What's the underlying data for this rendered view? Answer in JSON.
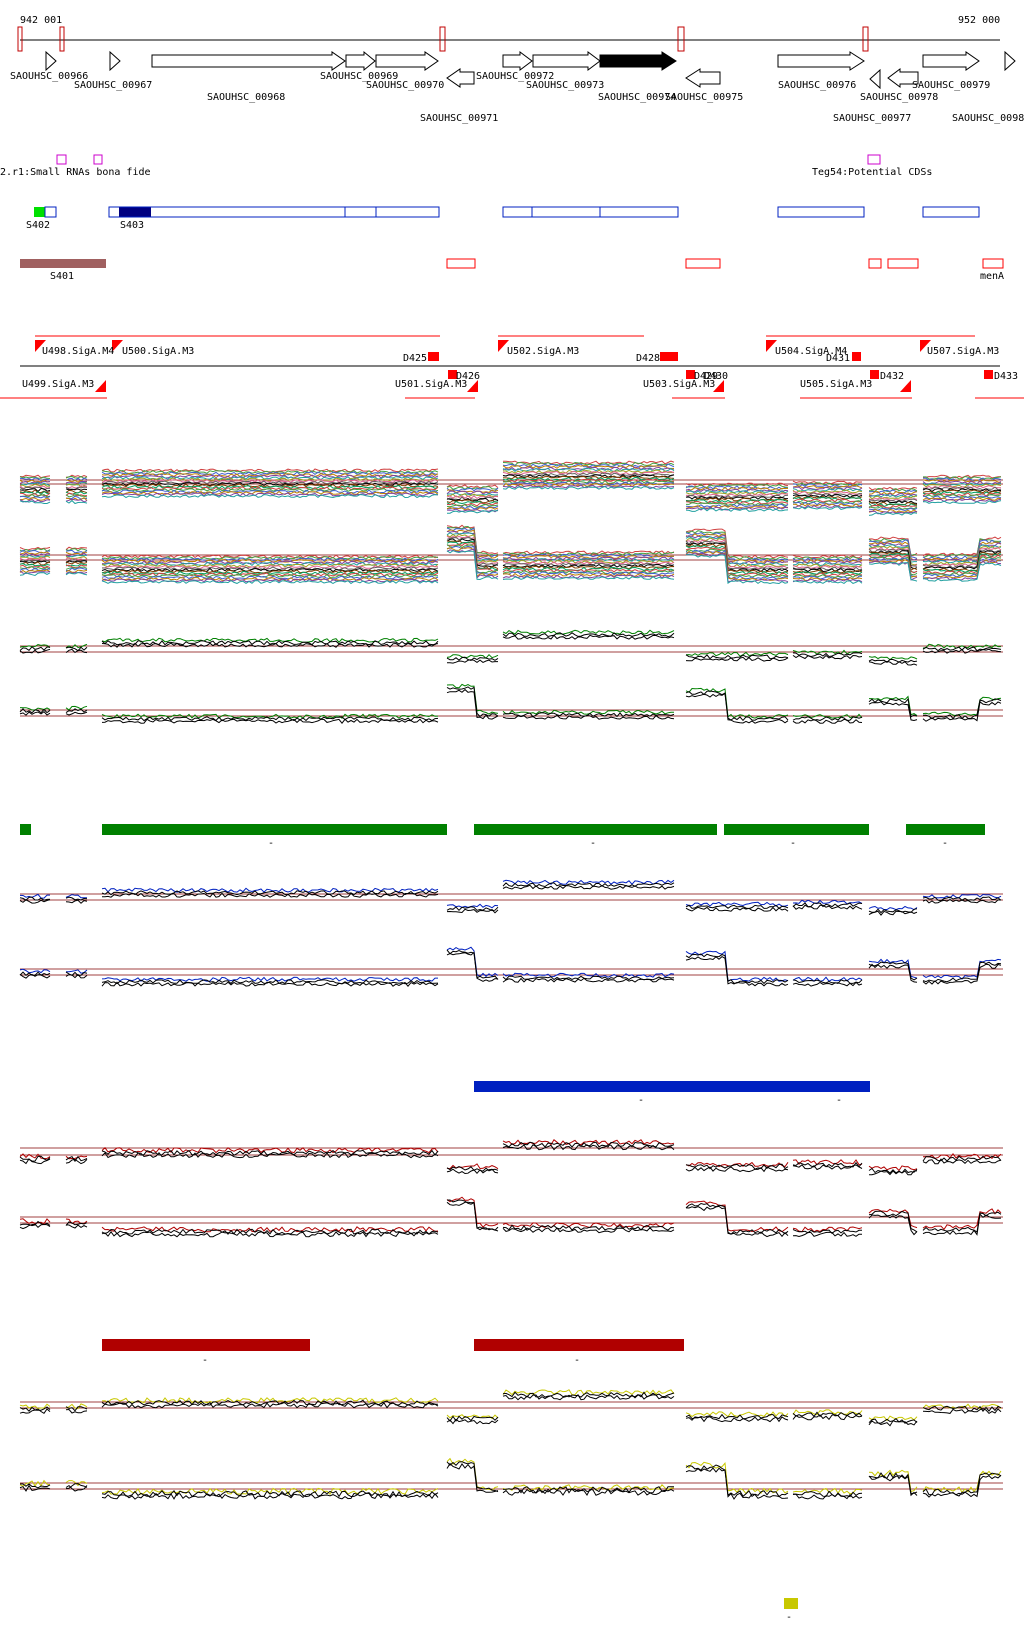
{
  "axis": {
    "start_label": "942 001",
    "end_label": "952 000"
  },
  "genes": [
    {
      "name": "SAOUHSC_00966",
      "strand": "+"
    },
    {
      "name": "SAOUHSC_00967",
      "strand": "+"
    },
    {
      "name": "SAOUHSC_00968",
      "strand": "+"
    },
    {
      "name": "SAOUHSC_00969",
      "strand": "+"
    },
    {
      "name": "SAOUHSC_00970",
      "strand": "+"
    },
    {
      "name": "SAOUHSC_00971",
      "strand": "-"
    },
    {
      "name": "SAOUHSC_00972",
      "strand": "+"
    },
    {
      "name": "SAOUHSC_00973",
      "strand": "+"
    },
    {
      "name": "SAOUHSC_00974",
      "strand": "+",
      "highlighted": true
    },
    {
      "name": "SAOUHSC_00975",
      "strand": "-"
    },
    {
      "name": "SAOUHSC_00976",
      "strand": "+"
    },
    {
      "name": "SAOUHSC_00977",
      "strand": "-"
    },
    {
      "name": "SAOUHSC_00978",
      "strand": "-"
    },
    {
      "name": "SAOUHSC_00979",
      "strand": "+"
    },
    {
      "name": "SAOUHSC_0098",
      "strand": "+"
    }
  ],
  "small_rna_labels": {
    "bona_fide": "2.r1:Small RNAs bona fide",
    "potential": "Teg54:Potential CDSs"
  },
  "segments": {
    "s402": "S402",
    "s403": "S403",
    "s401": "S401",
    "mena": "menA"
  },
  "promoters_up": [
    "U498.SigA.M4",
    "U500.SigA.M3",
    "U502.SigA.M3",
    "U504.SigA.M4",
    "U507.SigA.M3"
  ],
  "promoters_down": [
    "U499.SigA.M3",
    "U501.SigA.M3",
    "U503.SigA.M3",
    "U505.SigA.M3"
  ],
  "terminators": [
    "D425",
    "D426",
    "D428",
    "D429",
    "D430",
    "D431",
    "D432",
    "D433"
  ],
  "tick_labels": {
    "dash": "-"
  },
  "colors": {
    "gene_highlight": "#000000",
    "green": "#008000",
    "blue": "#0020c0",
    "red": "#b00000",
    "yellow": "#c8c800",
    "magenta": "#cc00cc",
    "brown": "#a06060",
    "promoter_red": "#ff0000"
  }
}
